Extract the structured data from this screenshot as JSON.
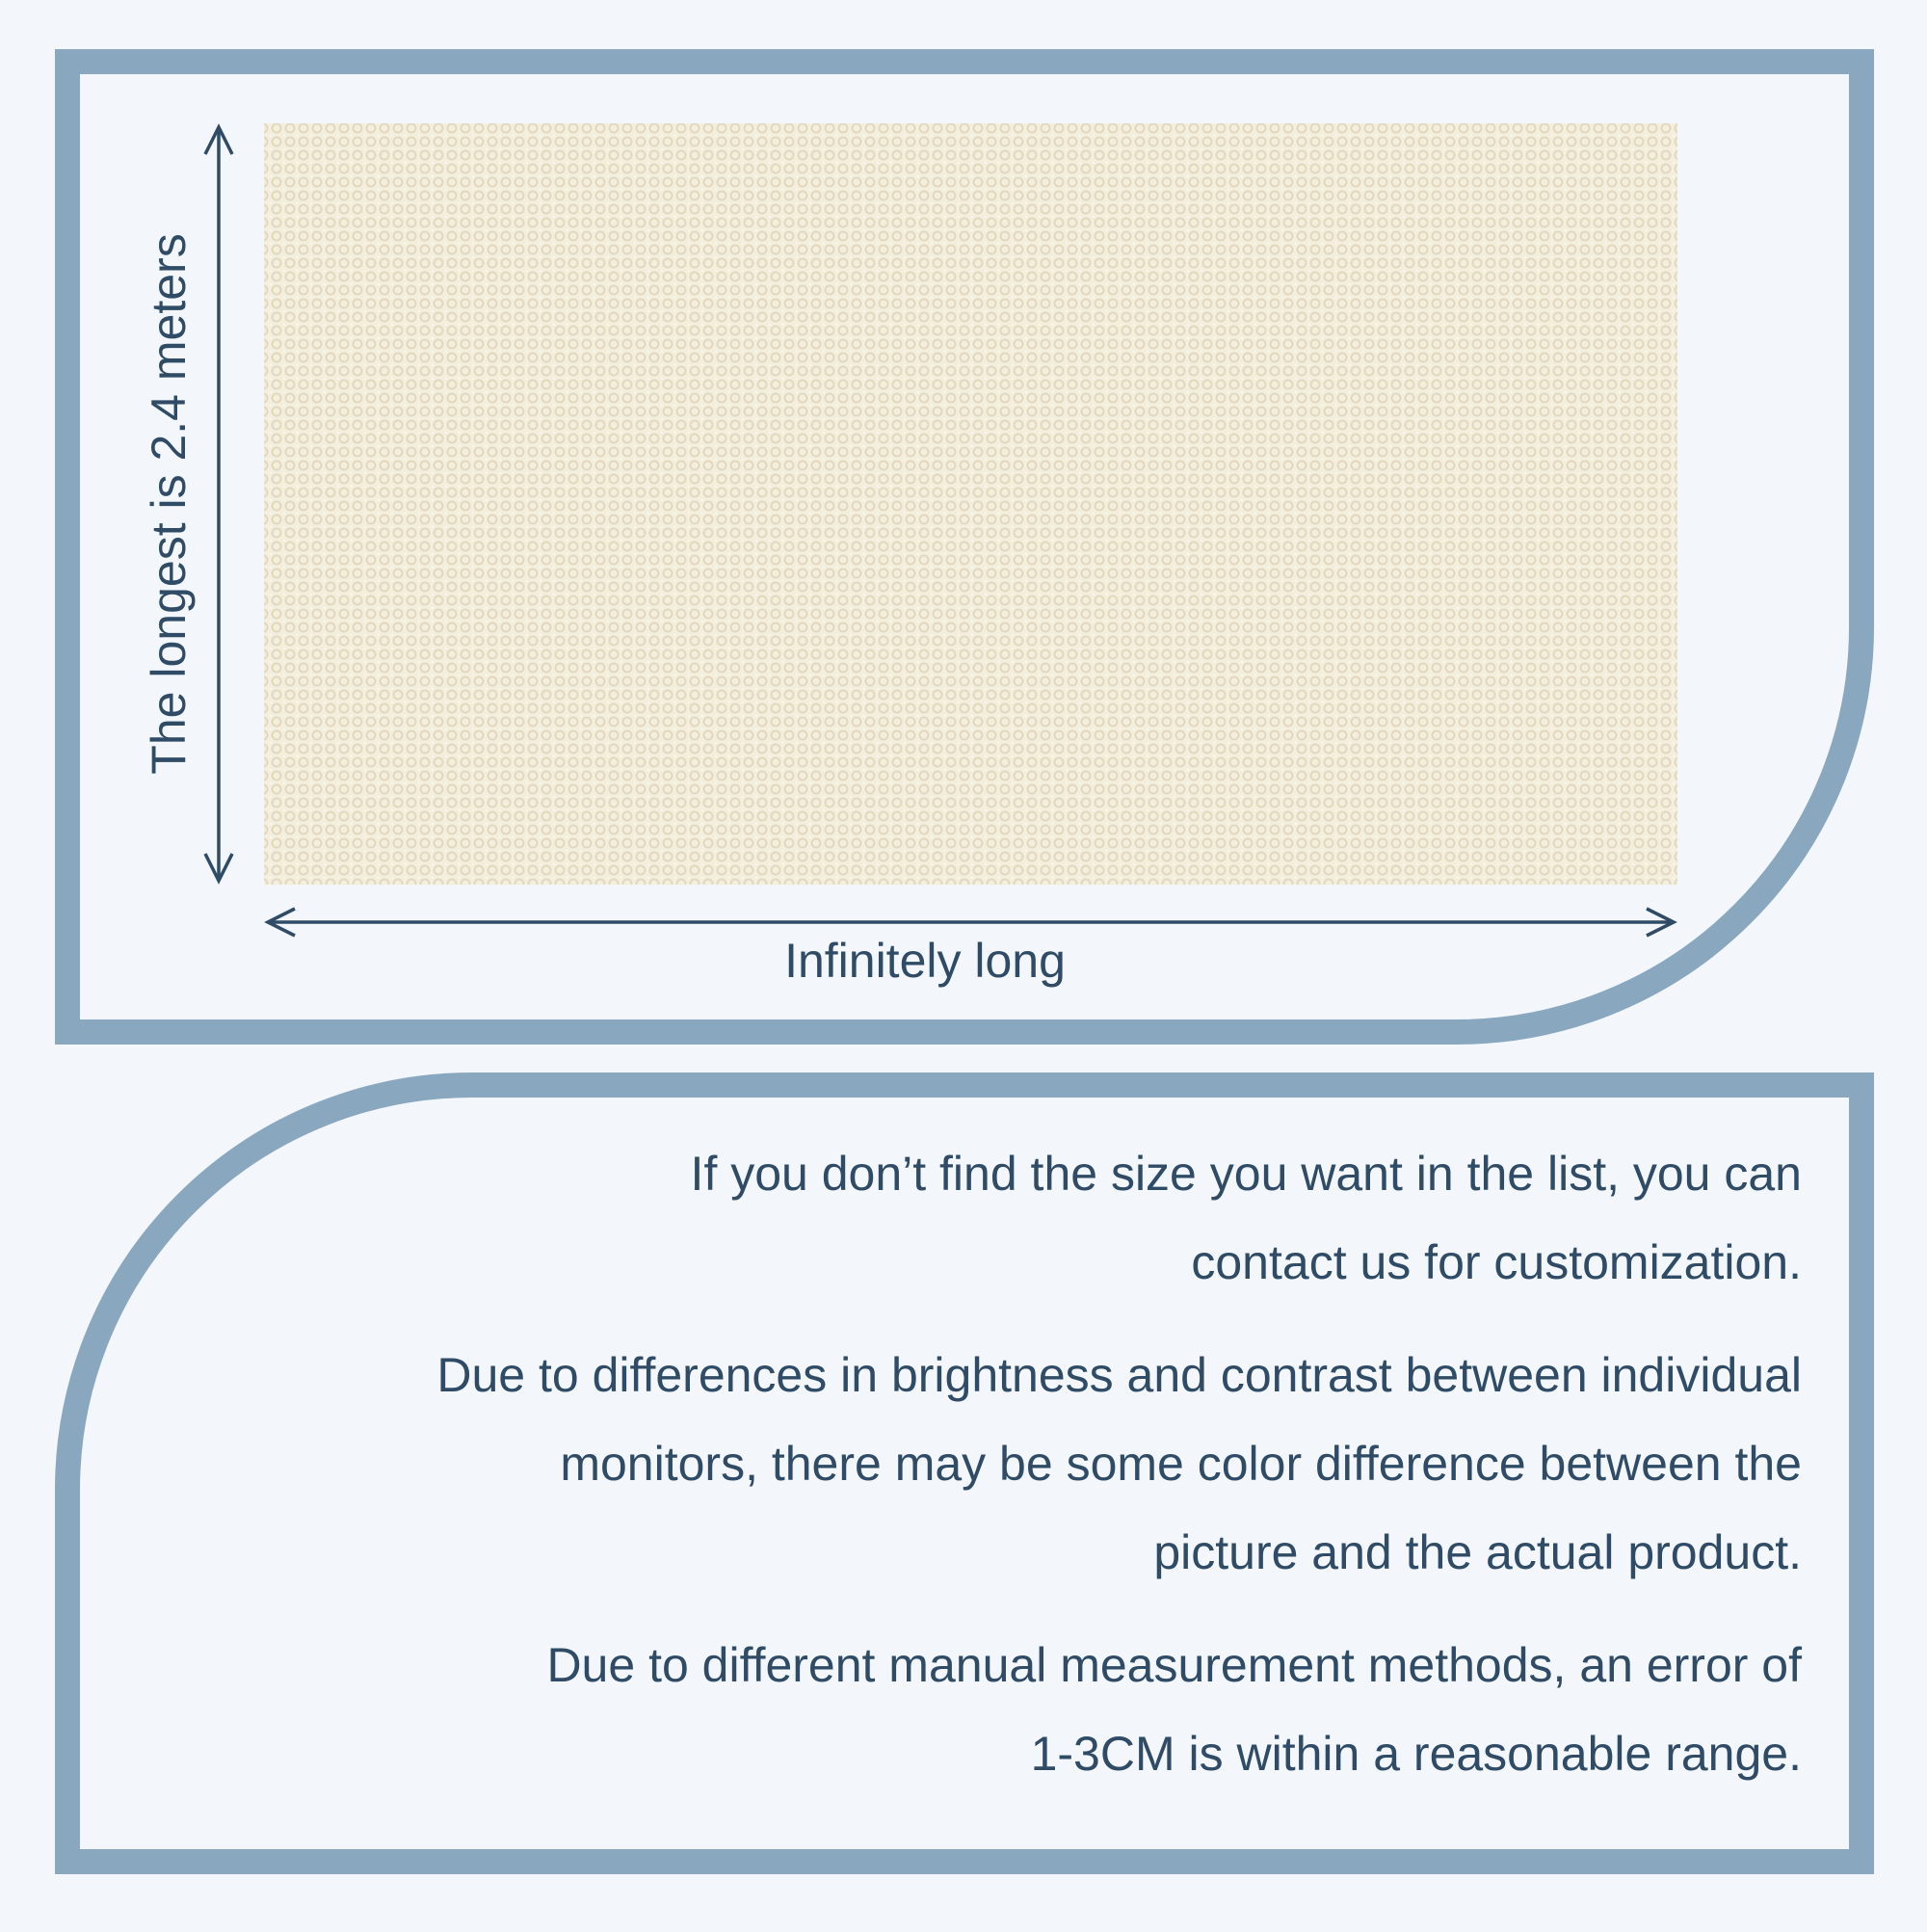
{
  "diagram": {
    "height_label": "The longest is 2.4 meters",
    "length_label": "Infinitely long"
  },
  "notes": [
    [
      "If you don’t find the size you want in the list, you can",
      "contact us for customization."
    ],
    [
      "Due to differences in brightness and contrast between individual",
      "monitors, there may be some color difference between the",
      "picture and the actual product."
    ],
    [
      "Due to different manual measurement methods, an error of",
      "1-3CM is within a reasonable range."
    ]
  ]
}
